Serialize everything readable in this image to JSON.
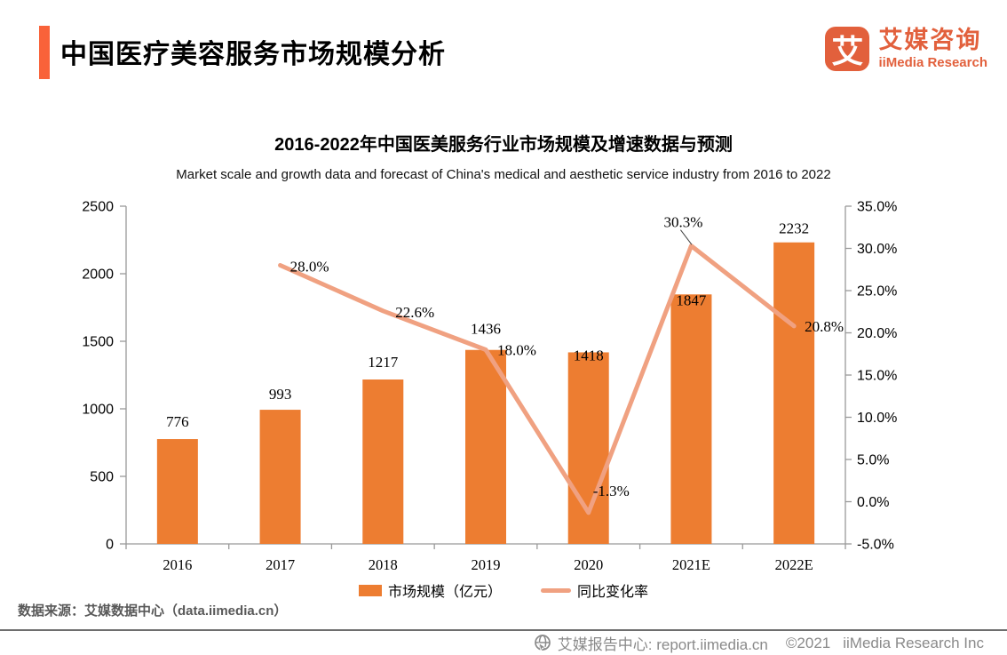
{
  "header": {
    "title": "中国医疗美容服务市场规模分析",
    "logo": {
      "glyph": "艾",
      "name_cn": "艾媒咨询",
      "name_en": "iiMedia Research"
    }
  },
  "chart_data": {
    "type": "bar+line combo",
    "title": "2016-2022年中国医美服务行业市场规模及增速数据与预测",
    "subtitle": "Market scale and growth data and forecast of China's medical and aesthetic service industry from 2016 to 2022",
    "categories": [
      "2016",
      "2017",
      "2018",
      "2019",
      "2020",
      "2021E",
      "2022E"
    ],
    "series": [
      {
        "name": "市场规模（亿元）",
        "type": "bar",
        "axis": "left",
        "color": "#ED7D31",
        "values": [
          776,
          993,
          1217,
          1436,
          1418,
          1847,
          2232
        ],
        "labels": [
          "776",
          "993",
          "1217",
          "1436",
          "1418",
          "1847",
          "2232"
        ]
      },
      {
        "name": "同比变化率",
        "type": "line",
        "axis": "right",
        "color": "#F0A181",
        "values": [
          null,
          28.0,
          22.6,
          18.0,
          -1.3,
          30.3,
          20.8
        ],
        "labels": [
          "",
          "28.0%",
          "22.6%",
          "18.0%",
          "-1.3%",
          "30.3%",
          "20.8%"
        ]
      }
    ],
    "left_axis": {
      "min": 0,
      "max": 2500,
      "step": 500,
      "tick_labels": [
        "0",
        "500",
        "1000",
        "1500",
        "2000",
        "2500"
      ]
    },
    "right_axis": {
      "min": -5,
      "max": 35,
      "step": 5,
      "tick_labels": [
        "-5.0%",
        "0.0%",
        "5.0%",
        "10.0%",
        "15.0%",
        "20.0%",
        "25.0%",
        "30.0%",
        "35.0%"
      ]
    },
    "grid": "off",
    "legend_position": "bottom-center",
    "legend": [
      {
        "label": "市场规模（亿元）",
        "swatch": "rect",
        "color": "#ED7D31"
      },
      {
        "label": "同比变化率",
        "swatch": "line",
        "color": "#F0A181"
      }
    ]
  },
  "source_note": "数据来源：艾媒数据中心（data.iimedia.cn）",
  "footer": {
    "report_center": "艾媒报告中心: report.iimedia.cn",
    "copyright": "©2021",
    "company": "iiMedia Research  Inc"
  },
  "colors": {
    "accent_bar": "#F96239",
    "logo_orange": "#E2603C",
    "bar": "#ED7D31",
    "line": "#F0A181",
    "axis": "#999999",
    "source_text": "#595959",
    "footer_text": "#8A8A8A"
  }
}
